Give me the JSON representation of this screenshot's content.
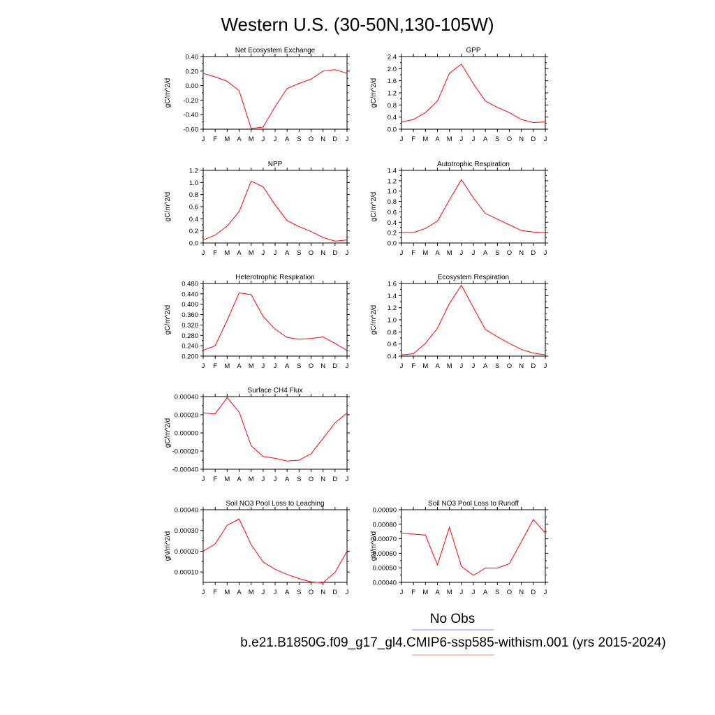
{
  "figure_title": "Western U.S. (30-50N,130-105W)",
  "months": [
    "J",
    "F",
    "M",
    "A",
    "M",
    "J",
    "J",
    "A",
    "S",
    "O",
    "N",
    "D",
    "J"
  ],
  "legend": [
    {
      "label": "No Obs",
      "color": "#8080ff"
    },
    {
      "label": "b.e21.B1850G.f09_g17_gl4.CMIP6-ssp585-withism.001 (yrs 2015-2024)",
      "color": "#ff8080"
    }
  ],
  "line_color": "#ff0000",
  "chart_data": [
    {
      "type": "line",
      "title": "Net Ecosystem Exchange",
      "ylabel": "gC/m^2/d",
      "ylim": [
        -0.6,
        0.4
      ],
      "yticks": [
        0.4,
        0.2,
        0.0,
        -0.2,
        -0.4,
        -0.6
      ],
      "yticklabels": [
        "0.40",
        "0.20",
        "0.00",
        "-0.20",
        "-0.40",
        "-0.60"
      ],
      "values": [
        0.17,
        0.12,
        0.06,
        -0.07,
        -0.59,
        -0.57,
        -0.29,
        -0.04,
        0.03,
        0.09,
        0.2,
        0.22,
        0.17
      ]
    },
    {
      "type": "line",
      "title": "GPP",
      "ylabel": "gC/m^2/d",
      "ylim": [
        0.0,
        2.4
      ],
      "yticks": [
        2.4,
        2.0,
        1.6,
        1.2,
        0.8,
        0.4,
        0.0
      ],
      "yticklabels": [
        "2.4",
        "2.0",
        "1.6",
        "1.2",
        "0.8",
        "0.4",
        "0.0"
      ],
      "values": [
        0.24,
        0.32,
        0.55,
        0.93,
        1.85,
        2.15,
        1.5,
        0.93,
        0.72,
        0.55,
        0.32,
        0.22,
        0.24
      ]
    },
    {
      "type": "line",
      "title": "NPP",
      "ylabel": "gC/m^2/d",
      "ylim": [
        0.0,
        1.2
      ],
      "yticks": [
        1.2,
        1.0,
        0.8,
        0.6,
        0.4,
        0.2,
        0.0
      ],
      "yticklabels": [
        "1.2",
        "1.0",
        "0.8",
        "0.6",
        "0.4",
        "0.2",
        "0.0"
      ],
      "values": [
        0.05,
        0.13,
        0.28,
        0.52,
        1.02,
        0.93,
        0.63,
        0.37,
        0.27,
        0.19,
        0.09,
        0.03,
        0.05
      ]
    },
    {
      "type": "line",
      "title": "Autotrophic Respiration",
      "ylabel": "gC/m^2/d",
      "ylim": [
        0.0,
        1.4
      ],
      "yticks": [
        1.4,
        1.2,
        1.0,
        0.8,
        0.6,
        0.4,
        0.2,
        0.0
      ],
      "yticklabels": [
        "1.4",
        "1.2",
        "1.0",
        "0.8",
        "0.6",
        "0.4",
        "0.2",
        "0.0"
      ],
      "values": [
        0.2,
        0.2,
        0.28,
        0.42,
        0.83,
        1.22,
        0.87,
        0.57,
        0.46,
        0.35,
        0.24,
        0.21,
        0.2
      ]
    },
    {
      "type": "line",
      "title": "Heterotrophic Respiration",
      "ylabel": "gC/m^2/d",
      "ylim": [
        0.2,
        0.48
      ],
      "yticks": [
        0.48,
        0.44,
        0.4,
        0.36,
        0.32,
        0.28,
        0.24,
        0.2
      ],
      "yticklabels": [
        "0.480",
        "0.440",
        "0.400",
        "0.360",
        "0.320",
        "0.280",
        "0.240",
        "0.200"
      ],
      "values": [
        0.222,
        0.24,
        0.338,
        0.444,
        0.437,
        0.353,
        0.304,
        0.272,
        0.265,
        0.268,
        0.274,
        0.249,
        0.222
      ]
    },
    {
      "type": "line",
      "title": "Ecosystem Respiration",
      "ylabel": "gC/m^2/d",
      "ylim": [
        0.4,
        1.6
      ],
      "yticks": [
        1.6,
        1.4,
        1.2,
        1.0,
        0.8,
        0.6,
        0.4
      ],
      "yticklabels": [
        "1.6",
        "1.4",
        "1.2",
        "1.0",
        "0.8",
        "0.6",
        "0.4"
      ],
      "values": [
        0.42,
        0.44,
        0.61,
        0.86,
        1.27,
        1.57,
        1.2,
        0.84,
        0.72,
        0.61,
        0.51,
        0.45,
        0.42
      ]
    },
    {
      "type": "line",
      "title": "Surface CH4 Flux",
      "ylabel": "gC/m^2/d",
      "ylim": [
        -0.0004,
        0.0004
      ],
      "yticks": [
        0.0004,
        0.0002,
        0.0,
        -0.0002,
        -0.0004
      ],
      "yticklabels": [
        "0.00040",
        "0.00020",
        "0.00000",
        "-0.00020",
        "-0.00040"
      ],
      "values": [
        0.00022,
        0.00021,
        0.00039,
        0.00023,
        -0.00014,
        -0.00026,
        -0.00028,
        -0.00031,
        -0.0003,
        -0.00023,
        -6e-05,
        0.00011,
        0.00022
      ]
    },
    null,
    {
      "type": "line",
      "title": "Soil NO3 Pool Loss to Leaching",
      "ylabel": "gN/m^2/d",
      "ylim": [
        5e-05,
        0.0004
      ],
      "yticks": [
        0.0004,
        0.0003,
        0.0002,
        0.0001
      ],
      "yticklabels": [
        "0.00040",
        "0.00030",
        "0.00020",
        "0.00010"
      ],
      "values": [
        0.0002,
        0.000235,
        0.000325,
        0.000355,
        0.000232,
        0.000148,
        0.000113,
        8.8e-05,
        6.8e-05,
        5.2e-05,
        4.8e-05,
        9.8e-05,
        0.0002
      ]
    },
    {
      "type": "line",
      "title": "Soil NO3 Pool Loss to Runoff",
      "ylabel": "gN/m^2/d",
      "ylim": [
        0.0004,
        0.0009
      ],
      "yticks": [
        0.0009,
        0.0008,
        0.0007,
        0.0006,
        0.0005,
        0.0004
      ],
      "yticklabels": [
        "0.00090",
        "0.00080",
        "0.00070",
        "0.00060",
        "0.00050",
        "0.00040"
      ],
      "values": [
        0.00074,
        0.000732,
        0.000725,
        0.00052,
        0.00078,
        0.00051,
        0.000448,
        0.000498,
        0.000498,
        0.000528,
        0.00068,
        0.000832,
        0.00074
      ]
    }
  ]
}
